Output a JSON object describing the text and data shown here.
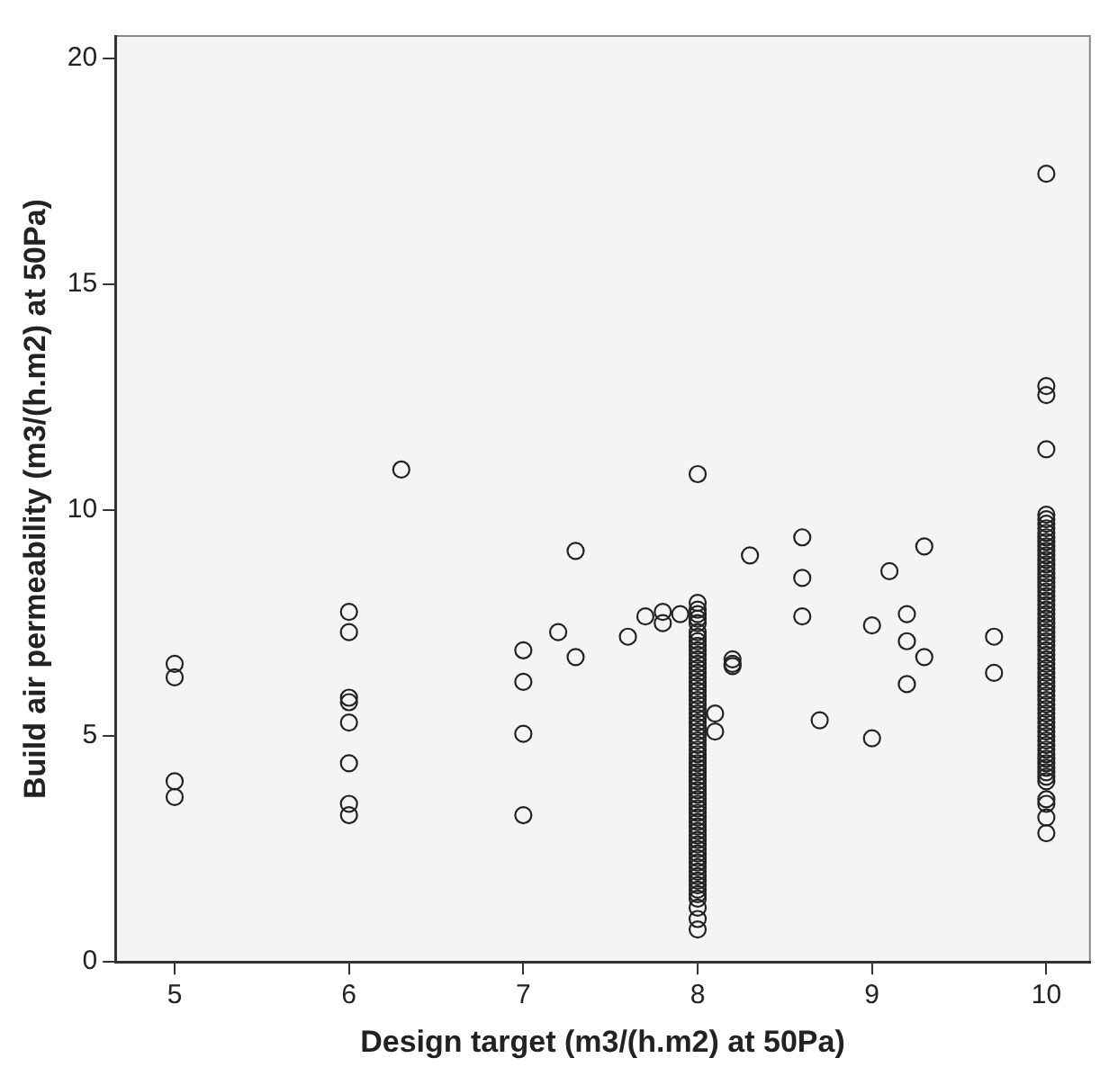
{
  "chart_data": {
    "type": "scatter",
    "xlabel": "Design target (m3/(h.m2) at 50Pa)",
    "ylabel": "Build air permeability (m3/(h.m2) at 50Pa)",
    "xlim": [
      4.66,
      10.25
    ],
    "ylim": [
      0,
      20.5
    ],
    "xticks": [
      5,
      6,
      7,
      8,
      9,
      10
    ],
    "yticks": [
      0,
      5,
      10,
      15,
      20
    ],
    "grid": false,
    "legend": false,
    "marker": "circle",
    "series": [
      {
        "color": "#222222",
        "x": [
          5,
          5,
          5,
          5,
          6,
          6,
          6,
          6,
          6,
          6,
          6,
          6,
          6.3,
          7,
          7,
          7,
          7,
          7.2,
          7.3,
          7.3,
          7.6,
          7.7,
          7.8,
          7.8,
          7.9,
          8.1,
          8.1,
          8.2,
          8.2,
          8.2,
          8.3,
          8.6,
          8.6,
          8.6,
          8.7,
          9,
          9,
          9.1,
          9.2,
          9.2,
          9.2,
          9.3,
          9.3,
          9.7,
          9.7,
          8,
          8,
          8,
          8,
          8,
          8,
          8,
          8,
          8,
          8,
          8,
          8,
          8,
          8,
          8,
          8,
          8,
          8,
          8,
          8,
          8,
          8,
          8,
          8,
          8,
          8,
          8,
          8,
          8,
          8,
          8,
          8,
          8,
          8,
          8,
          8,
          8,
          8,
          8,
          8,
          8,
          8,
          8,
          8,
          8,
          8,
          8,
          8,
          8,
          8,
          8,
          8,
          8,
          8,
          8,
          8,
          8,
          8,
          8,
          8,
          8,
          8,
          8,
          8,
          8,
          8,
          8,
          8,
          8,
          10,
          10,
          10,
          10,
          10,
          10,
          10,
          10,
          10,
          10,
          10,
          10,
          10,
          10,
          10,
          10,
          10,
          10,
          10,
          10,
          10,
          10,
          10,
          10,
          10,
          10,
          10,
          10,
          10,
          10,
          10,
          10,
          10,
          10,
          10,
          10,
          10,
          10,
          10,
          10,
          10,
          10,
          10,
          10,
          10,
          10,
          10,
          10,
          10,
          10,
          10,
          10,
          10,
          10,
          10,
          10,
          10,
          10,
          10,
          10,
          10,
          10,
          10,
          10,
          10,
          10,
          10,
          10
        ],
        "values": [
          6.6,
          6.3,
          4.0,
          3.65,
          7.75,
          7.3,
          5.85,
          5.75,
          5.3,
          4.4,
          3.5,
          3.25,
          10.9,
          6.9,
          6.2,
          5.05,
          3.25,
          7.3,
          9.1,
          6.75,
          7.2,
          7.65,
          7.75,
          7.5,
          7.7,
          5.5,
          5.1,
          6.7,
          6.6,
          6.55,
          9.0,
          9.4,
          8.5,
          7.65,
          5.35,
          7.45,
          4.95,
          8.65,
          7.7,
          7.1,
          6.15,
          9.2,
          6.75,
          7.2,
          6.4,
          0.72,
          0.95,
          1.2,
          1.4,
          1.5,
          1.6,
          1.7,
          1.8,
          1.9,
          2.0,
          2.1,
          2.2,
          2.3,
          2.4,
          2.5,
          2.6,
          2.7,
          2.8,
          2.9,
          3.0,
          3.1,
          3.2,
          3.3,
          3.4,
          3.5,
          3.6,
          3.7,
          3.8,
          3.9,
          4.0,
          4.1,
          4.2,
          4.3,
          4.4,
          4.5,
          4.6,
          4.7,
          4.8,
          4.9,
          5.0,
          5.1,
          5.2,
          5.3,
          5.4,
          5.5,
          5.6,
          5.7,
          5.8,
          5.9,
          6.0,
          6.1,
          6.2,
          6.3,
          6.4,
          6.5,
          6.6,
          6.7,
          6.8,
          6.9,
          7.0,
          7.1,
          7.2,
          7.3,
          7.5,
          7.6,
          7.7,
          7.8,
          7.95,
          10.8,
          2.85,
          3.2,
          3.5,
          3.6,
          4.0,
          4.1,
          4.2,
          4.3,
          4.4,
          4.5,
          4.6,
          4.7,
          4.8,
          4.9,
          5.0,
          5.1,
          5.2,
          5.3,
          5.4,
          5.5,
          5.6,
          5.7,
          5.8,
          5.9,
          6.0,
          6.1,
          6.2,
          6.3,
          6.4,
          6.5,
          6.6,
          6.7,
          6.8,
          6.9,
          7.0,
          7.1,
          7.2,
          7.3,
          7.4,
          7.5,
          7.6,
          7.7,
          7.8,
          7.9,
          8.0,
          8.1,
          8.2,
          8.3,
          8.4,
          8.5,
          8.6,
          8.7,
          8.8,
          8.9,
          9.0,
          9.1,
          9.2,
          9.3,
          9.4,
          9.5,
          9.6,
          9.7,
          9.8,
          9.9,
          11.35,
          12.55,
          12.75,
          17.45
        ]
      }
    ]
  }
}
